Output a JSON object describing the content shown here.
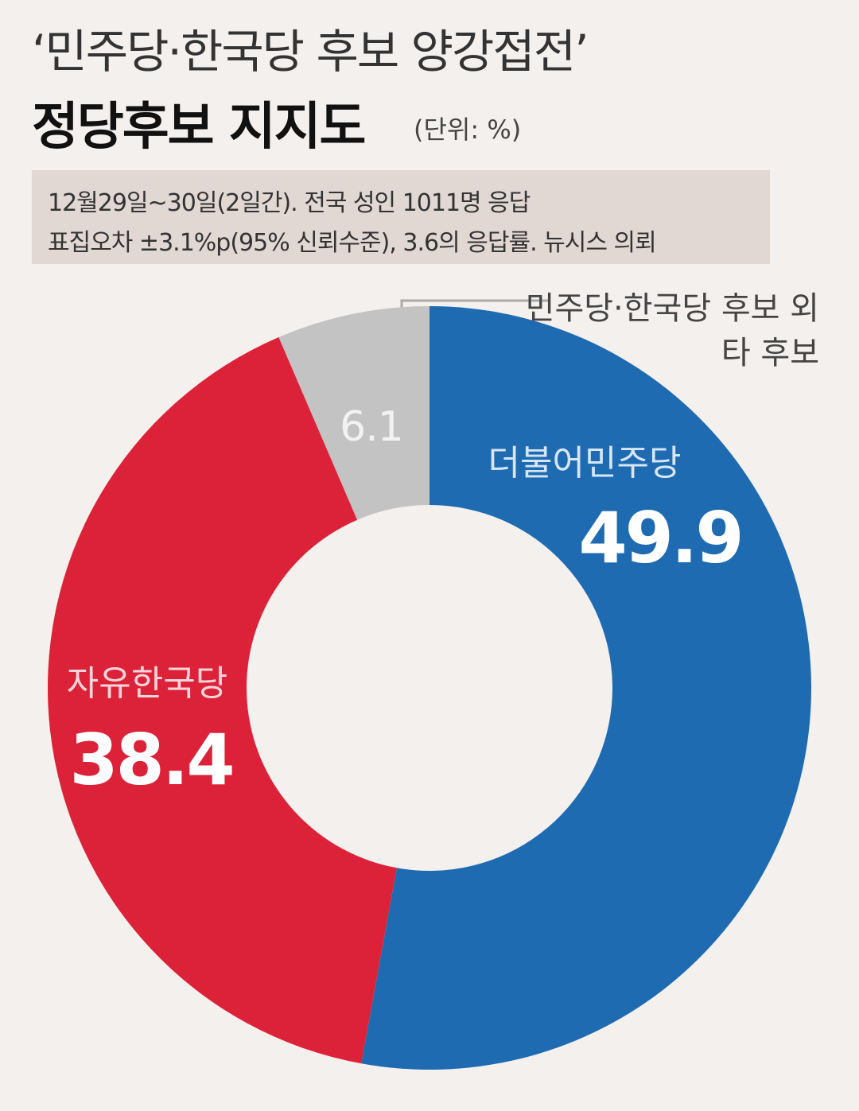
{
  "chart_data": {
    "type": "donut",
    "subtitle": "‘민주당·한국당 후보 양강접전’",
    "title": "정당후보 지지도",
    "unit": "(단위: %)",
    "notes": [
      "12월29일~30일(2일간). 전국 성인 1011명 응답",
      "표집오차 ±3.1%p(95% 신뢰수준), 3.6의 응답률. 뉴시스 의뢰"
    ],
    "categories": [
      "더불어민주당",
      "자유한국당",
      "민주당·한국당 후보 외 타 후보"
    ],
    "values": [
      49.9,
      38.4,
      6.1
    ],
    "colors": [
      "#1f6bb2",
      "#dc2238",
      "#c3c3c3"
    ]
  }
}
